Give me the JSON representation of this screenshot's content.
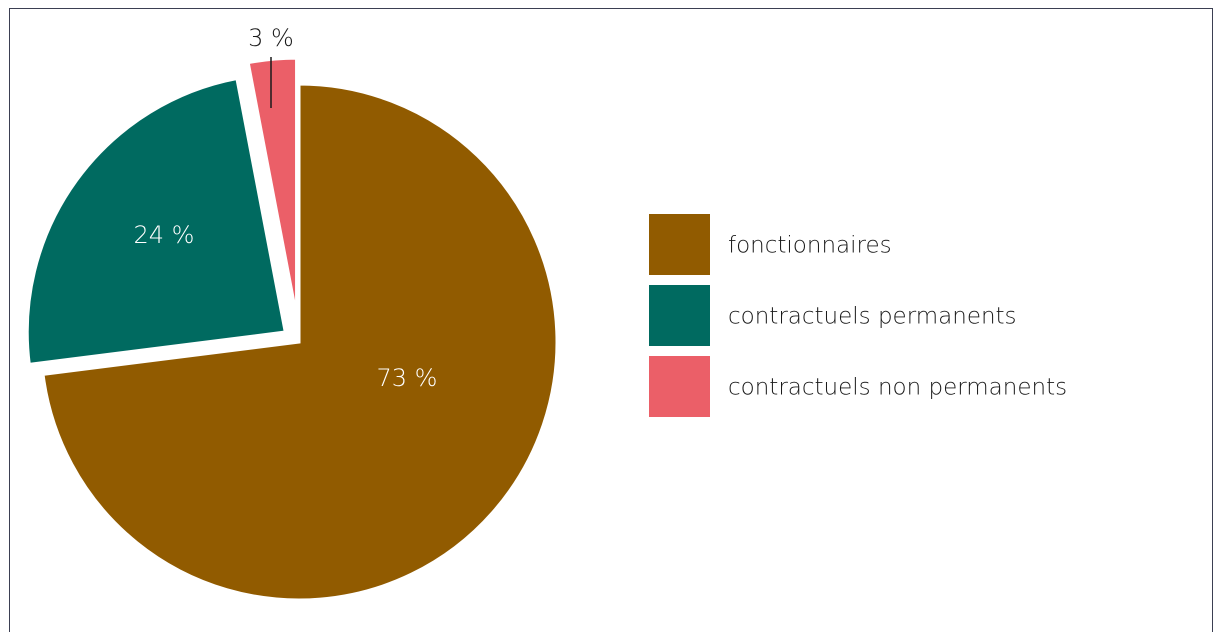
{
  "chart_data": {
    "type": "pie",
    "categories": [
      "fonctionnaires",
      "contractuels permanents",
      "contractuels non permanents"
    ],
    "values": [
      73,
      24,
      3
    ],
    "value_labels": [
      "73 %",
      "24 %",
      "3 %"
    ],
    "colors": [
      "#915b00",
      "#006a60",
      "#eb5f68"
    ],
    "legend_position": "right",
    "exploded": true,
    "start_angle": "12 o'clock, clockwise"
  }
}
